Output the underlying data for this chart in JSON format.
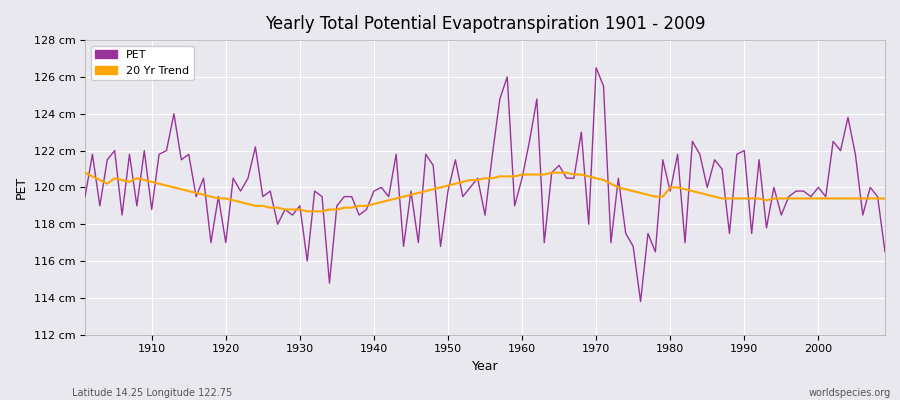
{
  "title": "Yearly Total Potential Evapotranspiration 1901 - 2009",
  "xlabel": "Year",
  "ylabel": "PET",
  "footnote_left": "Latitude 14.25 Longitude 122.75",
  "footnote_right": "worldspecies.org",
  "pet_color": "#993399",
  "trend_color": "#FFA500",
  "background_color": "#e8e8ee",
  "grid_color": "#ffffff",
  "ylim": [
    112,
    128
  ],
  "ytick_labels": [
    "112 cm",
    "114 cm",
    "116 cm",
    "118 cm",
    "120 cm",
    "122 cm",
    "124 cm",
    "126 cm",
    "128 cm"
  ],
  "ytick_values": [
    112,
    114,
    116,
    118,
    120,
    122,
    124,
    126,
    128
  ],
  "years": [
    1901,
    1902,
    1903,
    1904,
    1905,
    1906,
    1907,
    1908,
    1909,
    1910,
    1911,
    1912,
    1913,
    1914,
    1915,
    1916,
    1917,
    1918,
    1919,
    1920,
    1921,
    1922,
    1923,
    1924,
    1925,
    1926,
    1927,
    1928,
    1929,
    1930,
    1931,
    1932,
    1933,
    1934,
    1935,
    1936,
    1937,
    1938,
    1939,
    1940,
    1941,
    1942,
    1943,
    1944,
    1945,
    1946,
    1947,
    1948,
    1949,
    1950,
    1951,
    1952,
    1953,
    1954,
    1955,
    1956,
    1957,
    1958,
    1959,
    1960,
    1961,
    1962,
    1963,
    1964,
    1965,
    1966,
    1967,
    1968,
    1969,
    1970,
    1971,
    1972,
    1973,
    1974,
    1975,
    1976,
    1977,
    1978,
    1979,
    1980,
    1981,
    1982,
    1983,
    1984,
    1985,
    1986,
    1987,
    1988,
    1989,
    1990,
    1991,
    1992,
    1993,
    1994,
    1995,
    1996,
    1997,
    1998,
    1999,
    2000,
    2001,
    2002,
    2003,
    2004,
    2005,
    2006,
    2007,
    2008,
    2009
  ],
  "pet_values": [
    119.5,
    121.8,
    119.0,
    121.5,
    122.0,
    118.5,
    121.8,
    119.0,
    122.0,
    118.8,
    121.8,
    122.0,
    124.0,
    121.5,
    121.8,
    119.5,
    120.5,
    117.0,
    119.5,
    117.0,
    120.5,
    119.8,
    120.5,
    122.2,
    119.5,
    119.8,
    118.0,
    118.8,
    118.5,
    119.0,
    116.0,
    119.8,
    119.5,
    114.8,
    119.0,
    119.5,
    119.5,
    118.5,
    118.8,
    119.8,
    120.0,
    119.5,
    121.8,
    116.8,
    119.8,
    117.0,
    121.8,
    121.2,
    116.8,
    119.8,
    121.5,
    119.5,
    120.0,
    120.5,
    118.5,
    121.8,
    124.8,
    126.0,
    119.0,
    120.5,
    122.5,
    124.8,
    117.0,
    120.8,
    121.2,
    120.5,
    120.5,
    123.0,
    118.0,
    126.5,
    125.5,
    117.0,
    120.5,
    117.5,
    116.8,
    113.8,
    117.5,
    116.5,
    121.5,
    119.8,
    121.8,
    117.0,
    122.5,
    121.8,
    120.0,
    121.5,
    121.0,
    117.5,
    121.8,
    122.0,
    117.5,
    121.5,
    117.8,
    120.0,
    118.5,
    119.5,
    119.8,
    119.8,
    119.5,
    120.0,
    119.5,
    122.5,
    122.0,
    123.8,
    121.8,
    118.5,
    120.0,
    119.5,
    116.5
  ],
  "trend_values": [
    120.8,
    120.6,
    120.4,
    120.2,
    120.5,
    120.4,
    120.3,
    120.5,
    120.4,
    120.3,
    120.2,
    120.1,
    120.0,
    119.9,
    119.8,
    119.7,
    119.6,
    119.5,
    119.4,
    119.4,
    119.3,
    119.2,
    119.1,
    119.0,
    119.0,
    118.9,
    118.9,
    118.8,
    118.8,
    118.8,
    118.7,
    118.7,
    118.7,
    118.8,
    118.8,
    118.9,
    118.9,
    119.0,
    119.0,
    119.1,
    119.2,
    119.3,
    119.4,
    119.5,
    119.6,
    119.7,
    119.8,
    119.9,
    120.0,
    120.1,
    120.2,
    120.3,
    120.4,
    120.4,
    120.5,
    120.5,
    120.6,
    120.6,
    120.6,
    120.7,
    120.7,
    120.7,
    120.7,
    120.8,
    120.8,
    120.8,
    120.7,
    120.7,
    120.6,
    120.5,
    120.4,
    120.2,
    120.0,
    119.9,
    119.8,
    119.7,
    119.6,
    119.5,
    119.5,
    120.0,
    120.0,
    119.9,
    119.8,
    119.7,
    119.6,
    119.5,
    119.4,
    119.4,
    119.4,
    119.4,
    119.4,
    119.4,
    119.3,
    119.4,
    119.4,
    119.4,
    119.4,
    119.4,
    119.4,
    119.4,
    119.4,
    119.4,
    119.4,
    119.4,
    119.4,
    119.4,
    119.4,
    119.4,
    119.4
  ]
}
